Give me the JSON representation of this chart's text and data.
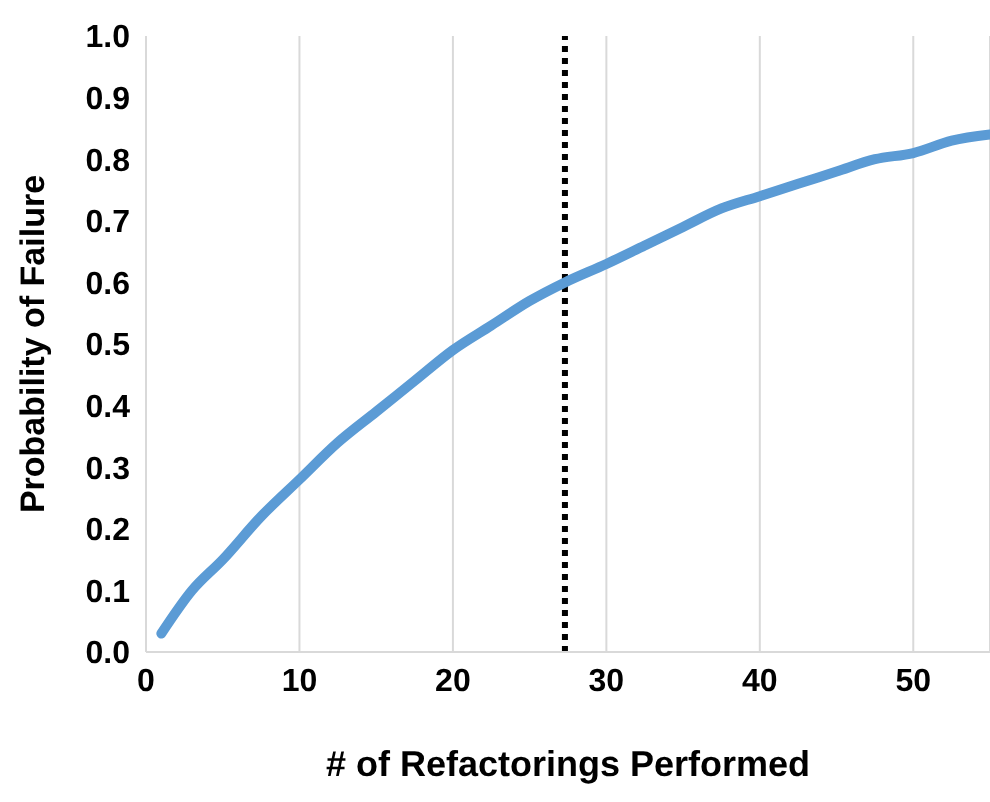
{
  "chart_data": {
    "type": "line",
    "xlabel": "# of Refactorings Performed",
    "ylabel": "Probability of Failure",
    "x": [
      1,
      3,
      5,
      7.5,
      10,
      12.5,
      15,
      17.5,
      20,
      22.5,
      25,
      27.3,
      30,
      32.5,
      35,
      37.5,
      40,
      42.5,
      45,
      47.5,
      50,
      52.5,
      55
    ],
    "series": [
      {
        "color": "#5b9bd5",
        "values": [
          0.03,
          0.1,
          0.15,
          0.22,
          0.28,
          0.34,
          0.39,
          0.44,
          0.49,
          0.53,
          0.57,
          0.6,
          0.63,
          0.66,
          0.69,
          0.72,
          0.74,
          0.76,
          0.78,
          0.8,
          0.81,
          0.83,
          0.84
        ]
      }
    ],
    "xlim": [
      0,
      55
    ],
    "xticks": [
      0,
      10,
      20,
      30,
      40,
      50
    ],
    "ylim": [
      0,
      1
    ],
    "yticks": [
      {
        "value": 0,
        "label": "0.0"
      },
      0.1,
      0.2,
      0.3,
      0.4,
      0.5,
      0.6,
      0.7,
      0.8,
      0.9,
      {
        "value": 1,
        "label": "1.0"
      }
    ],
    "grid": "x",
    "marker": "none",
    "line_style": "solid",
    "ref_lines": [
      {
        "axis": "x",
        "value": 27.3,
        "color": "#000000",
        "line_style": "dotted"
      }
    ]
  }
}
